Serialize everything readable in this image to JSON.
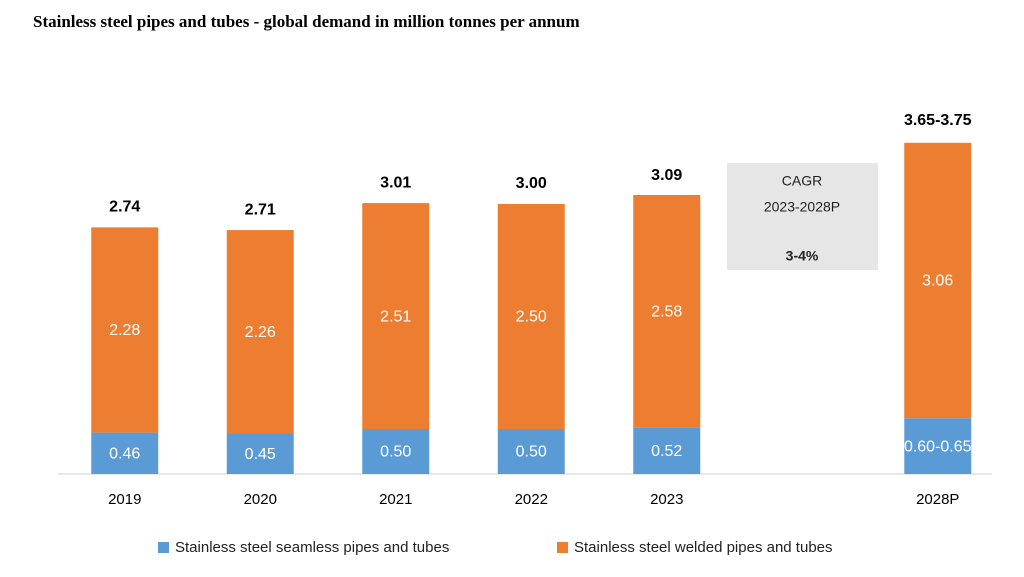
{
  "chart_data": {
    "type": "stacked_bar",
    "title": "Stainless steel pipes and tubes - global demand in million tonnes per annum",
    "categories": [
      "2019",
      "2020",
      "2021",
      "2022",
      "2023",
      null,
      "2028P"
    ],
    "series": [
      {
        "name": "Stainless steel seamless pipes and tubes",
        "color": "#5b9bd5",
        "values": [
          0.46,
          0.45,
          0.5,
          0.5,
          0.52,
          null,
          0.62
        ],
        "value_labels": [
          "0.46",
          "0.45",
          "0.50",
          "0.50",
          "0.52",
          null,
          "0.60-0.65"
        ]
      },
      {
        "name": "Stainless steel welded pipes and tubes",
        "color": "#ed7d31",
        "values": [
          2.28,
          2.26,
          2.51,
          2.5,
          2.58,
          null,
          3.06
        ],
        "value_labels": [
          "2.28",
          "2.26",
          "2.51",
          "2.50",
          "2.58",
          null,
          "3.06"
        ]
      }
    ],
    "totals": [
      2.74,
      2.71,
      3.01,
      3.0,
      3.09,
      null,
      3.7
    ],
    "total_labels": [
      "2.74",
      "2.71",
      "3.01",
      "3.00",
      "3.09",
      null,
      "3.65-3.75"
    ],
    "annotation": {
      "lines": [
        "CAGR",
        "2023-2028P",
        "3-4%"
      ]
    },
    "ylim": [
      0,
      4
    ]
  }
}
